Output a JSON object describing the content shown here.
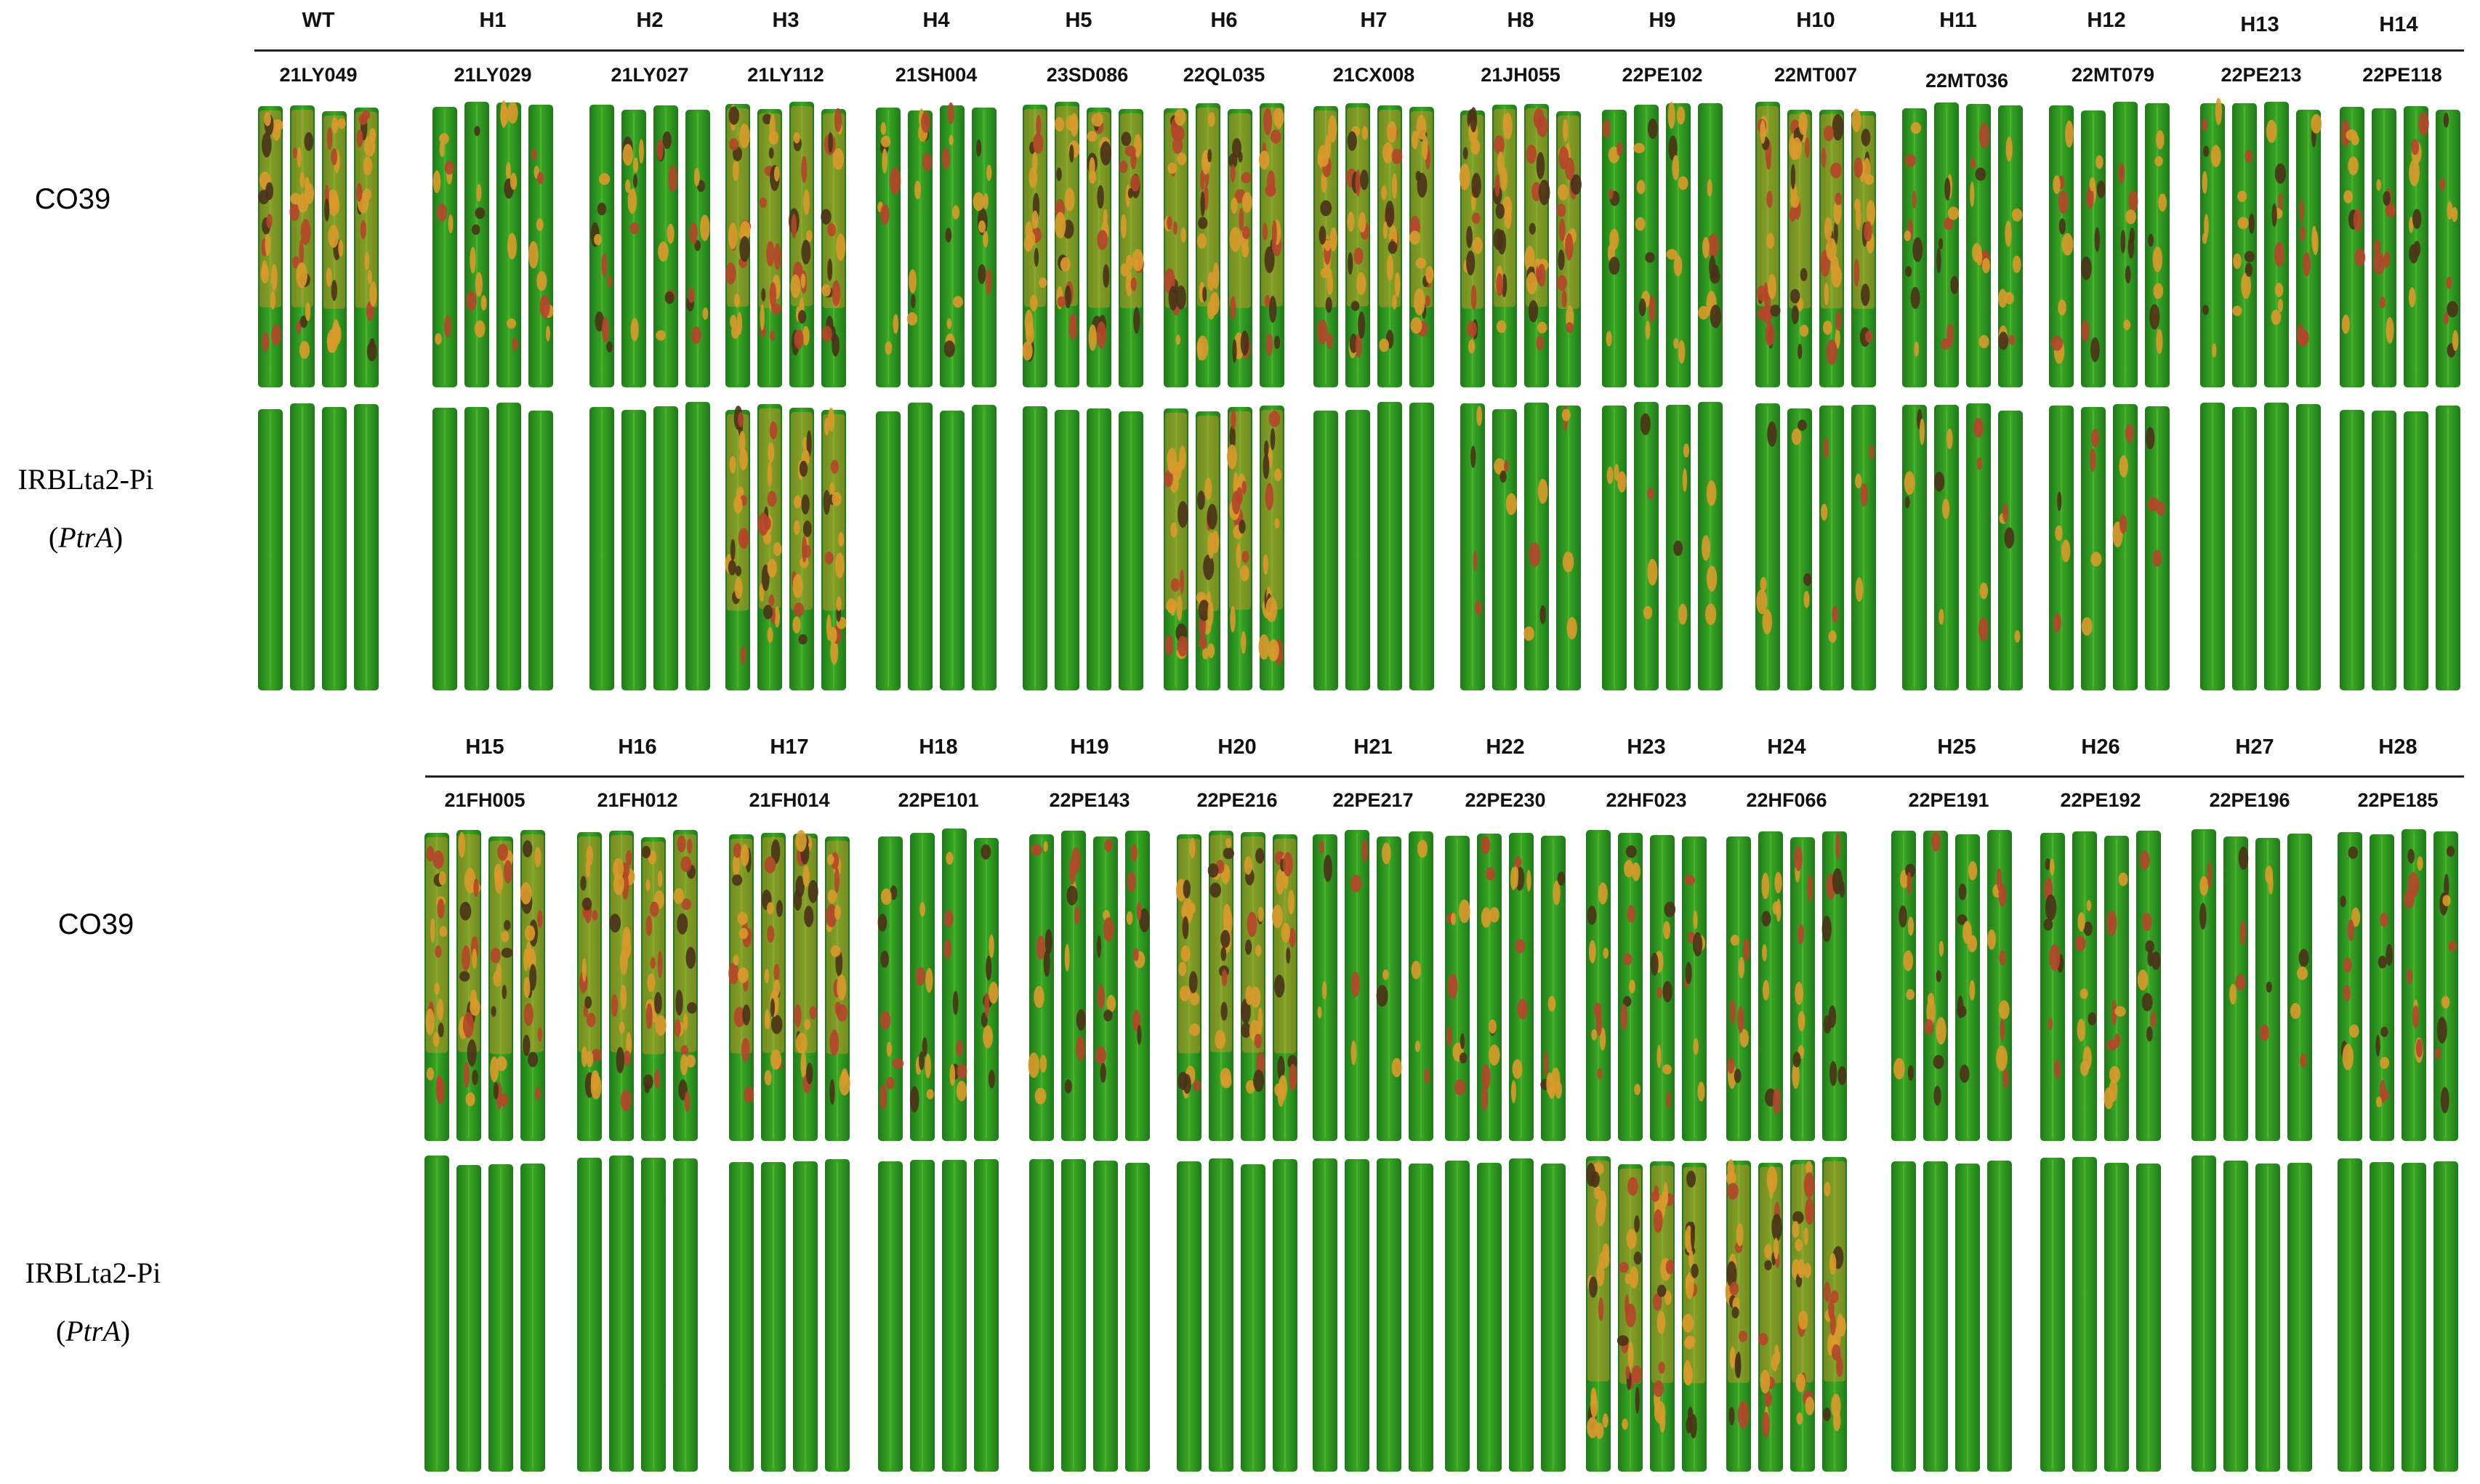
{
  "figure": {
    "panels": [
      {
        "panel_id": "top",
        "haplotypes": [
          "WT",
          "H1",
          "H2",
          "H3",
          "H4",
          "H5",
          "H6",
          "H7",
          "H8",
          "H9",
          "H10",
          "H11",
          "H12",
          "H13",
          "H14"
        ],
        "isolates": [
          "21LY049",
          "21LY029",
          "21LY027",
          "21LY112",
          "21SH004",
          "23SD086",
          "22QL035",
          "21CX008",
          "21JH055",
          "22PE102",
          "22MT007",
          "22MT036",
          "22MT079",
          "22PE213",
          "22PE118"
        ],
        "row_labels": {
          "susceptible": "CO39",
          "resistant_line": "IRBLta2-Pi",
          "resistant_gene": "PtrA"
        },
        "resistant_row_lesion_score": [
          0,
          0,
          0,
          3,
          0,
          0,
          3,
          0,
          1,
          1,
          1,
          1,
          1,
          0,
          0
        ],
        "susceptible_row_lesion_score": [
          3,
          2,
          2,
          3,
          2,
          3,
          3,
          3,
          3,
          2,
          3,
          2,
          2,
          2,
          2
        ]
      },
      {
        "panel_id": "bottom",
        "haplotypes": [
          "H15",
          "H16",
          "H17",
          "H18",
          "H19",
          "H20",
          "H21",
          "H22",
          "H23",
          "H24",
          "H25",
          "H26",
          "H27",
          "H28"
        ],
        "isolates": [
          "21FH005",
          "21FH012",
          "21FH014",
          "22PE101",
          "22PE143",
          "22PE216",
          "22PE217",
          "22PE230",
          "22HF023",
          "22HF066",
          "22PE191",
          "22PE192",
          "22PE196",
          "22PE185"
        ],
        "row_labels": {
          "susceptible": "CO39",
          "resistant_line": "IRBLta2-Pi",
          "resistant_gene": "PtrA"
        },
        "resistant_row_lesion_score": [
          0,
          0,
          0,
          0,
          0,
          0,
          0,
          0,
          3,
          3,
          0,
          0,
          0,
          0
        ],
        "susceptible_row_lesion_score": [
          3,
          3,
          3,
          2,
          2,
          3,
          1,
          2,
          2,
          2,
          2,
          2,
          1,
          2
        ]
      }
    ],
    "colors": {
      "leaf_dark": "#1e7a1a",
      "leaf_light": "#3aa823",
      "lesion_orange": "#d99a2b",
      "lesion_dark": "#4a3218",
      "lesion_red": "#b5452a"
    }
  }
}
